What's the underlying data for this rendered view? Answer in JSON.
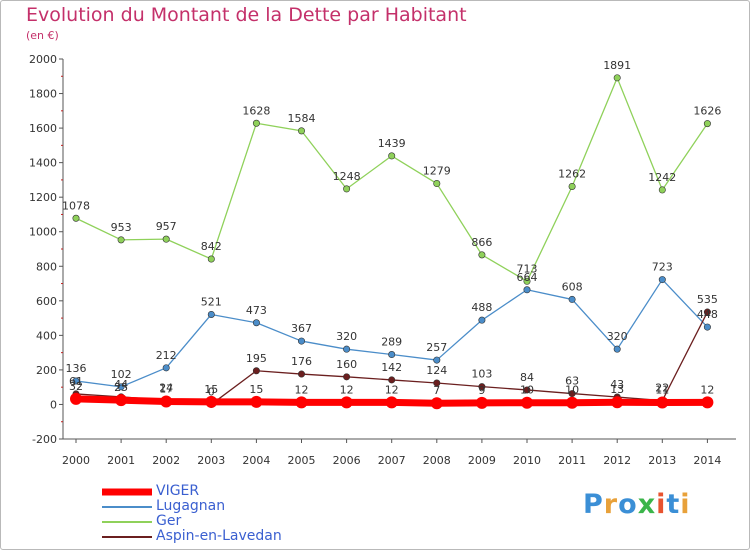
{
  "title": "Evolution du Montant de la Dette par Habitant",
  "subtitle": "(en €)",
  "logo": "Proxiti",
  "chart_data": {
    "type": "line",
    "categories": [
      "2000",
      "2001",
      "2002",
      "2003",
      "2004",
      "2005",
      "2006",
      "2007",
      "2008",
      "2009",
      "2010",
      "2011",
      "2012",
      "2013",
      "2014"
    ],
    "ylim": [
      -200,
      2000
    ],
    "yticks": [
      -200,
      0,
      200,
      400,
      600,
      800,
      1000,
      1200,
      1400,
      1600,
      1800,
      2000
    ],
    "grid": false,
    "legend": "bottom-left",
    "series": [
      {
        "name": "VIGER",
        "color": "#ff0000",
        "values": [
          32,
          25,
          17,
          15,
          15,
          12,
          12,
          12,
          7,
          9,
          10,
          10,
          13,
          11,
          12
        ],
        "labels": [
          "32",
          "25",
          "17",
          "15",
          "15",
          "12",
          "12",
          "12",
          "7",
          "9",
          "10",
          "10",
          "13",
          "11",
          "12"
        ]
      },
      {
        "name": "Lugagnan",
        "color": "#4b8dc9",
        "values": [
          136,
          102,
          212,
          521,
          473,
          367,
          320,
          289,
          257,
          488,
          664,
          608,
          320,
          723,
          448
        ],
        "labels": [
          "136",
          "102",
          "212",
          "521",
          "473",
          "367",
          "320",
          "289",
          "257",
          "488",
          "664",
          "608",
          "320",
          "723",
          "448"
        ]
      },
      {
        "name": "Ger",
        "color": "#8fd15a",
        "values": [
          1078,
          953,
          957,
          842,
          1628,
          1584,
          1248,
          1439,
          1279,
          866,
          713,
          1262,
          1891,
          1242,
          1626
        ],
        "labels": [
          "1078",
          "953",
          "957",
          "842",
          "1628",
          "1584",
          "1248",
          "1439",
          "1279",
          "866",
          "713",
          "1262",
          "1891",
          "1242",
          "1626"
        ]
      },
      {
        "name": "Aspin-en-Lavedan",
        "color": "#6b1f1f",
        "values": [
          61,
          44,
          24,
          0,
          195,
          176,
          160,
          142,
          124,
          103,
          84,
          63,
          43,
          22,
          535
        ],
        "labels": [
          "61",
          "44",
          "24",
          "0",
          "195",
          "176",
          "160",
          "142",
          "124",
          "103",
          "84",
          "63",
          "43",
          "22",
          "535"
        ]
      }
    ]
  }
}
